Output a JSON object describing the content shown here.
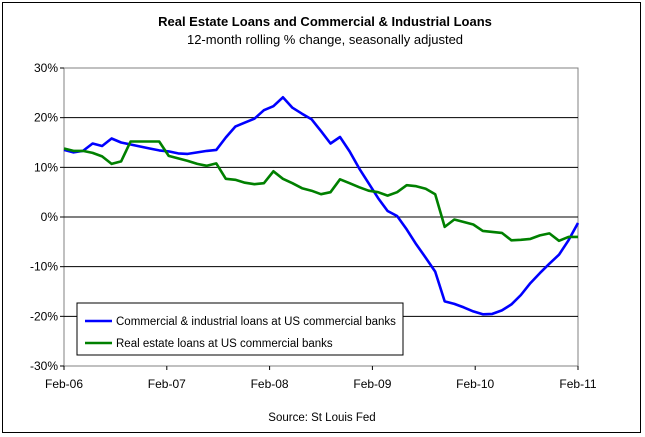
{
  "chart_data": {
    "type": "line",
    "title": "Real Estate Loans and Commercial & Industrial Loans",
    "subtitle": "12-month rolling % change, seasonally adjusted",
    "source": "Source: St Louis Fed",
    "xlabel": "",
    "ylabel": "",
    "ylim": [
      -30,
      30
    ],
    "y_ticks": [
      30,
      20,
      10,
      0,
      -10,
      -20,
      -30
    ],
    "y_tick_labels": [
      "30%",
      "20%",
      "10%",
      "0%",
      "-10%",
      "-20%",
      "-30%"
    ],
    "x_ticks": [
      "Feb-06",
      "Feb-07",
      "Feb-08",
      "Feb-09",
      "Feb-10",
      "Feb-11"
    ],
    "grid": "horizontal",
    "legend_position": "bottom-left",
    "series": [
      {
        "name": "Commercial & industrial loans at US commercial banks",
        "color": "#0000ff",
        "values": [
          13.5,
          13.0,
          13.3,
          14.8,
          14.3,
          15.8,
          15.0,
          14.6,
          14.2,
          13.8,
          13.4,
          13.2,
          12.8,
          12.7,
          13.0,
          13.3,
          13.5,
          16.0,
          18.2,
          19.0,
          19.8,
          21.5,
          22.3,
          24.1,
          22.0,
          20.8,
          19.7,
          17.3,
          14.8,
          16.1,
          13.2,
          9.8,
          6.8,
          3.8,
          1.2,
          0.2,
          -2.5,
          -5.5,
          -8.2,
          -11.0,
          -17.0,
          -17.5,
          -18.2,
          -19.0,
          -19.6,
          -19.5,
          -18.8,
          -17.6,
          -15.7,
          -13.3,
          -11.3,
          -9.4,
          -7.6,
          -4.7,
          -1.2
        ]
      },
      {
        "name": "Real estate loans at US commercial banks",
        "color": "#008000",
        "values": [
          13.8,
          13.3,
          13.3,
          12.9,
          12.2,
          10.7,
          11.2,
          15.2,
          15.2,
          15.2,
          15.2,
          12.3,
          11.8,
          11.3,
          10.7,
          10.3,
          10.8,
          7.7,
          7.5,
          6.9,
          6.6,
          6.8,
          9.2,
          7.7,
          6.8,
          5.8,
          5.3,
          4.6,
          5.0,
          7.6,
          6.8,
          6.0,
          5.3,
          5.0,
          4.3,
          5.0,
          6.4,
          6.2,
          5.7,
          4.6,
          -2.0,
          -0.5,
          -1.0,
          -1.5,
          -2.8,
          -3.0,
          -3.2,
          -4.7,
          -4.6,
          -4.4,
          -3.7,
          -3.3,
          -4.8,
          -4.0,
          -4.0
        ]
      }
    ]
  }
}
